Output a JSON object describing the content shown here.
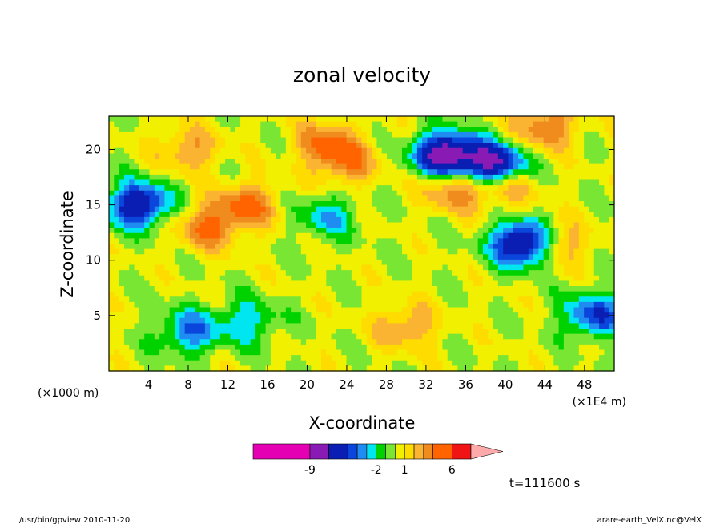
{
  "chart_data": {
    "type": "heatmap",
    "title": "zonal velocity",
    "xlabel": "X-coordinate",
    "ylabel": "Z-coordinate",
    "x_unit_left": "(×1000 m)",
    "x_unit_right": "(×1E4 m)",
    "xlim": [
      0,
      51
    ],
    "ylim": [
      0,
      23
    ],
    "x_ticks": [
      "4",
      "8",
      "12",
      "16",
      "20",
      "24",
      "28",
      "32",
      "36",
      "40",
      "44",
      "48"
    ],
    "y_ticks": [
      "5",
      "10",
      "15",
      "20"
    ],
    "colorbar": {
      "levels": [
        -15,
        -9,
        -7,
        -5,
        -4,
        -3,
        -2,
        -1,
        0,
        1,
        2,
        3,
        4,
        6,
        8,
        30
      ],
      "colors": [
        "#e600b4",
        "#8a1ab4",
        "#0a1eb4",
        "#0a46dc",
        "#1e8cf0",
        "#00e6f0",
        "#00d200",
        "#78e632",
        "#f0f000",
        "#ffdc00",
        "#fab432",
        "#f08c1e",
        "#ff6400",
        "#f01414",
        "#ff7878",
        "#ffaaaa"
      ],
      "tick_labels": [
        {
          "text": "-9",
          "value": -9
        },
        {
          "text": "-2",
          "value": -2
        },
        {
          "text": "1",
          "value": 1
        },
        {
          "text": "6",
          "value": 6
        }
      ]
    },
    "time_label": "t=111600 s",
    "features": [
      {
        "x": 3,
        "z": 15,
        "value": -7
      },
      {
        "x": 10,
        "z": 13,
        "value": 4
      },
      {
        "x": 14,
        "z": 15,
        "value": 4
      },
      {
        "x": 22,
        "z": 14,
        "value": -3
      },
      {
        "x": 8,
        "z": 3.5,
        "value": -4
      },
      {
        "x": 14,
        "z": 4.5,
        "value": -3
      },
      {
        "x": 34,
        "z": 19.5,
        "value": -9
      },
      {
        "x": 39,
        "z": 18.5,
        "value": -9
      },
      {
        "x": 42,
        "z": 11.5,
        "value": -9
      },
      {
        "x": 40,
        "z": 17,
        "value": 4
      },
      {
        "x": 35,
        "z": 16.5,
        "value": 4
      },
      {
        "x": 45,
        "z": 11.5,
        "value": 4
      },
      {
        "x": 44,
        "z": 22,
        "value": 4
      },
      {
        "x": 49,
        "z": 5,
        "value": -5
      },
      {
        "x": 22,
        "z": 20.5,
        "value": 4
      },
      {
        "x": 8,
        "z": 20,
        "value": 3
      },
      {
        "x": 24,
        "z": 18.5,
        "value": 3
      },
      {
        "x": 30,
        "z": 4,
        "value": 3
      }
    ]
  },
  "footer": {
    "left": "/usr/bin/gpview  2010-11-20",
    "right": "arare-earth_VelX.nc@VelX"
  }
}
